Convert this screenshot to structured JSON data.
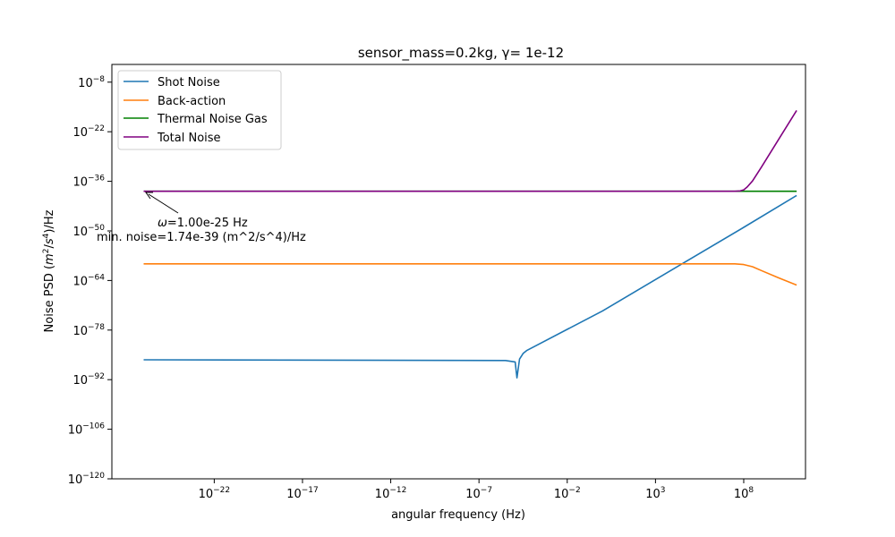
{
  "chart_data": {
    "type": "line",
    "title": "sensor_mass=0.2kg, γ= 1e-12",
    "xlabel": "angular frequency (Hz)",
    "ylabel": "Noise PSD (m²/s⁴)/Hz",
    "x_scale": "log",
    "y_scale": "log",
    "xlim_log10": [
      -27.8,
      11.5
    ],
    "ylim_log10": [
      -120,
      -3
    ],
    "x_ticks_log10": [
      -22,
      -17,
      -12,
      -7,
      -2,
      3,
      8
    ],
    "y_ticks_log10": [
      -8,
      -22,
      -36,
      -50,
      -64,
      -78,
      -92,
      -106,
      -120
    ],
    "grid": false,
    "legend_position": "top-left",
    "series": [
      {
        "name": "Shot Noise",
        "color": "#1f77b4",
        "x_log10": [
          -26,
          -15,
          -5.5,
          -4.95,
          -4.85,
          -4.7,
          -4.5,
          -4.3,
          0,
          4,
          8,
          11
        ],
        "y_log10": [
          -86.4,
          -86.5,
          -86.6,
          -87.0,
          -91.5,
          -86.2,
          -84.6,
          -83.8,
          -72.6,
          -60.8,
          -49.0,
          -40.0
        ]
      },
      {
        "name": "Back-action",
        "color": "#ff7f0e",
        "x_log10": [
          -26,
          -10,
          0,
          5,
          7.5,
          8.0,
          8.5,
          9.0,
          10,
          11
        ],
        "y_log10": [
          -59.3,
          -59.3,
          -59.3,
          -59.3,
          -59.3,
          -59.5,
          -60.1,
          -61.2,
          -63.3,
          -65.3
        ]
      },
      {
        "name": "Thermal Noise Gas",
        "color": "#008000",
        "x_log10": [
          -26,
          11
        ],
        "y_log10": [
          -38.8,
          -38.8
        ]
      },
      {
        "name": "Total Noise",
        "color": "#800080",
        "x_log10": [
          -26,
          7.5,
          7.8,
          8.0,
          8.2,
          8.5,
          9,
          10,
          11
        ],
        "y_log10": [
          -38.8,
          -38.8,
          -38.7,
          -38.4,
          -37.6,
          -35.9,
          -32.0,
          -24.0,
          -16.0
        ]
      }
    ],
    "annotations": [
      {
        "line1": "ω=1.00e-25 Hz",
        "line2": "min. noise=1.74e-39 (m^2/s^4)/Hz"
      }
    ]
  },
  "labels": {
    "title": "sensor_mass=0.2kg, γ= 1e-12",
    "xlabel": "angular frequency (Hz)",
    "ylabel_prefix": "Noise PSD (",
    "ylabel_m": "m",
    "ylabel_m_exp": "2",
    "ylabel_slash": "/",
    "ylabel_s": "s",
    "ylabel_s_exp": "4",
    "ylabel_suffix": ")/Hz",
    "x_tick_base": "10",
    "x_tick_exps": [
      "−22",
      "−17",
      "−12",
      "−7",
      "−2",
      "3",
      "8"
    ],
    "y_tick_base": "10",
    "y_tick_exps": [
      "−8",
      "−22",
      "−36",
      "−50",
      "−64",
      "−78",
      "−92",
      "−106",
      "−120"
    ],
    "anno_omega_symbol": "ω",
    "anno_omega_rest": "=1.00e-25 Hz",
    "anno_line2": "min. noise=1.74e-39 (m^2/s^4)/Hz",
    "legend": [
      "Shot Noise",
      "Back-action",
      "Thermal Noise Gas",
      "Total Noise"
    ]
  }
}
